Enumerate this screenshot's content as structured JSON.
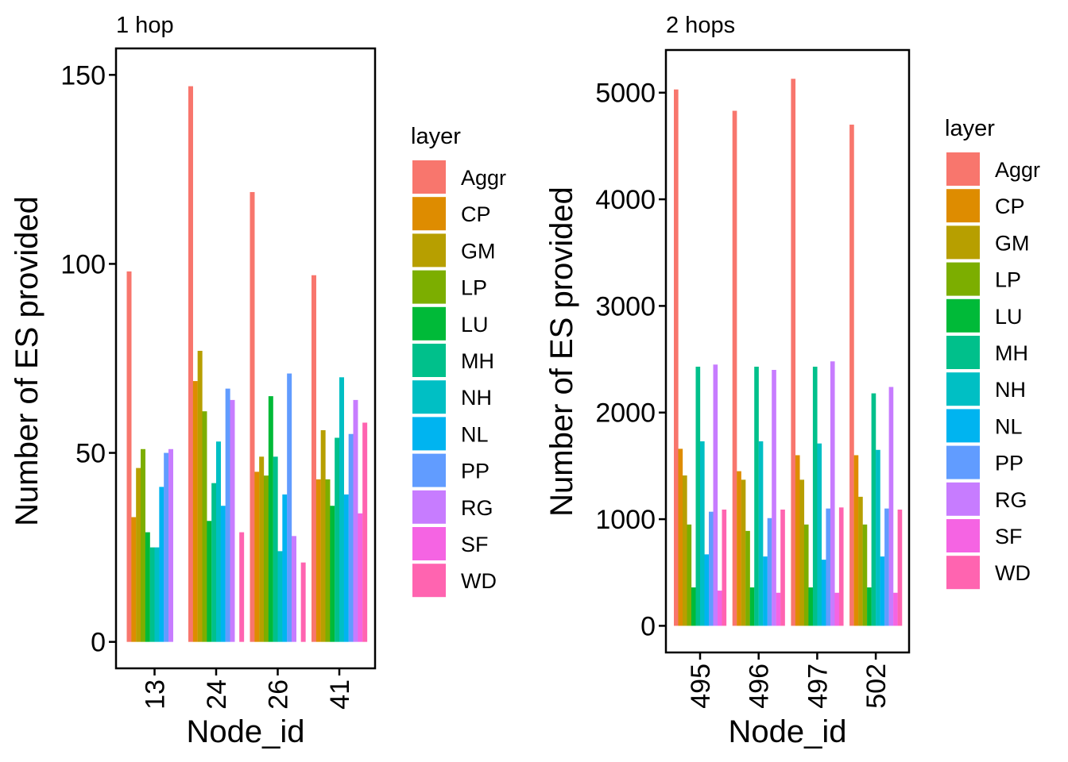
{
  "layer_colors": {
    "Aggr": "#F8766D",
    "CP": "#DE8C00",
    "GM": "#B79F00",
    "LP": "#7CAE00",
    "LU": "#00BA38",
    "MH": "#00C08B",
    "NH": "#00BFC4",
    "NL": "#00B4F0",
    "PP": "#619CFF",
    "RG": "#C77CFF",
    "SF": "#F564E3",
    "WD": "#FF64B0"
  },
  "chart_data": [
    {
      "type": "bar",
      "title": "1 hop",
      "xlabel": "Node_id",
      "ylabel": "Number of ES provided",
      "categories": [
        "13",
        "24",
        "26",
        "41"
      ],
      "ylim": [
        -7,
        157
      ],
      "yticks": [
        0,
        50,
        100,
        150
      ],
      "legend_title": "layer",
      "legend_position": "right",
      "series": [
        {
          "name": "Aggr",
          "values": [
            98,
            147,
            119,
            97
          ]
        },
        {
          "name": "CP",
          "values": [
            33,
            69,
            45,
            43
          ]
        },
        {
          "name": "GM",
          "values": [
            46,
            77,
            49,
            56
          ]
        },
        {
          "name": "LP",
          "values": [
            51,
            61,
            44,
            43
          ]
        },
        {
          "name": "LU",
          "values": [
            29,
            32,
            65,
            36
          ]
        },
        {
          "name": "MH",
          "values": [
            25,
            42,
            49,
            54
          ]
        },
        {
          "name": "NH",
          "values": [
            25,
            53,
            24,
            70
          ]
        },
        {
          "name": "NL",
          "values": [
            41,
            36,
            39,
            39
          ]
        },
        {
          "name": "PP",
          "values": [
            50,
            67,
            71,
            55
          ]
        },
        {
          "name": "RG",
          "values": [
            51,
            64,
            28,
            64
          ]
        },
        {
          "name": "SF",
          "values": [
            0,
            0,
            0,
            34
          ]
        },
        {
          "name": "WD",
          "values": [
            0,
            29,
            21,
            58
          ]
        }
      ]
    },
    {
      "type": "bar",
      "title": "2 hops",
      "xlabel": "Node_id",
      "ylabel": "Number of ES provided",
      "categories": [
        "495",
        "496",
        "497",
        "502"
      ],
      "ylim": [
        -250,
        5400
      ],
      "yticks": [
        0,
        1000,
        2000,
        3000,
        4000,
        5000
      ],
      "legend_title": "layer",
      "legend_position": "right",
      "series": [
        {
          "name": "Aggr",
          "values": [
            5030,
            4830,
            5130,
            4700
          ]
        },
        {
          "name": "CP",
          "values": [
            1660,
            1450,
            1600,
            1600
          ]
        },
        {
          "name": "GM",
          "values": [
            1410,
            1370,
            1370,
            1210
          ]
        },
        {
          "name": "LP",
          "values": [
            950,
            890,
            950,
            950
          ]
        },
        {
          "name": "LU",
          "values": [
            360,
            360,
            360,
            360
          ]
        },
        {
          "name": "MH",
          "values": [
            2430,
            2430,
            2430,
            2180
          ]
        },
        {
          "name": "NH",
          "values": [
            1730,
            1730,
            1710,
            1650
          ]
        },
        {
          "name": "NL",
          "values": [
            670,
            650,
            620,
            650
          ]
        },
        {
          "name": "PP",
          "values": [
            1070,
            1010,
            1100,
            1100
          ]
        },
        {
          "name": "RG",
          "values": [
            2450,
            2400,
            2480,
            2240
          ]
        },
        {
          "name": "SF",
          "values": [
            330,
            310,
            310,
            310
          ]
        },
        {
          "name": "WD",
          "values": [
            1090,
            1090,
            1110,
            1090
          ]
        }
      ]
    }
  ]
}
